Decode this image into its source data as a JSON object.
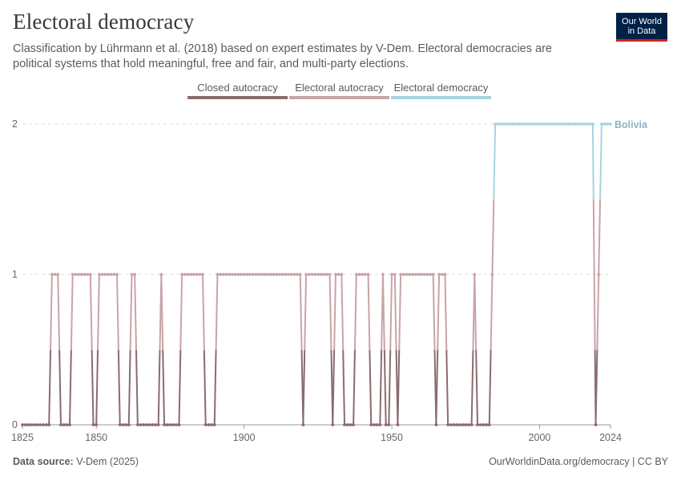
{
  "header": {
    "title": "Electoral democracy",
    "subtitle": "Classification by Lührmann et al. (2018) based on expert estimates by V-Dem. Electoral democracies are political systems that hold meaningful, free and fair, and multi-party elections.",
    "logo_line1": "Our World",
    "logo_line2": "in Data"
  },
  "footer": {
    "source_label": "Data source:",
    "source_value": "V-Dem (2025)",
    "url": "OurWorldinData.org/democracy | CC BY"
  },
  "chart_data": {
    "type": "line",
    "entity": "Bolivia",
    "xlim": [
      1825,
      2024
    ],
    "ylim": [
      0,
      2
    ],
    "x_ticks": [
      1825,
      1850,
      1900,
      1950,
      2000,
      2024
    ],
    "y_ticks": [
      0,
      1,
      2
    ],
    "grid": "horizontal dashed",
    "legend": {
      "position": "top",
      "items": [
        {
          "label": "Closed autocracy",
          "color": "#8a6c6e"
        },
        {
          "label": "Electoral autocracy",
          "color": "#c9a3a7"
        },
        {
          "label": "Electoral democracy",
          "color": "#a6d4dd"
        }
      ]
    },
    "segments": [
      {
        "start": 1825,
        "end": 1834,
        "value": 0
      },
      {
        "start": 1835,
        "end": 1837,
        "value": 1
      },
      {
        "start": 1838,
        "end": 1841,
        "value": 0
      },
      {
        "start": 1842,
        "end": 1848,
        "value": 1
      },
      {
        "start": 1849,
        "end": 1850,
        "value": 0
      },
      {
        "start": 1851,
        "end": 1857,
        "value": 1
      },
      {
        "start": 1858,
        "end": 1861,
        "value": 0
      },
      {
        "start": 1862,
        "end": 1863,
        "value": 1
      },
      {
        "start": 1864,
        "end": 1871,
        "value": 0
      },
      {
        "start": 1872,
        "end": 1872,
        "value": 1
      },
      {
        "start": 1873,
        "end": 1878,
        "value": 0
      },
      {
        "start": 1879,
        "end": 1886,
        "value": 1
      },
      {
        "start": 1887,
        "end": 1890,
        "value": 0
      },
      {
        "start": 1891,
        "end": 1919,
        "value": 1
      },
      {
        "start": 1920,
        "end": 1920,
        "value": 0
      },
      {
        "start": 1921,
        "end": 1929,
        "value": 1
      },
      {
        "start": 1930,
        "end": 1930,
        "value": 0
      },
      {
        "start": 1931,
        "end": 1933,
        "value": 1
      },
      {
        "start": 1934,
        "end": 1937,
        "value": 0
      },
      {
        "start": 1938,
        "end": 1942,
        "value": 1
      },
      {
        "start": 1943,
        "end": 1946,
        "value": 0
      },
      {
        "start": 1947,
        "end": 1947,
        "value": 1
      },
      {
        "start": 1948,
        "end": 1949,
        "value": 0
      },
      {
        "start": 1950,
        "end": 1951,
        "value": 1
      },
      {
        "start": 1952,
        "end": 1952,
        "value": 0
      },
      {
        "start": 1953,
        "end": 1964,
        "value": 1
      },
      {
        "start": 1965,
        "end": 1965,
        "value": 0
      },
      {
        "start": 1966,
        "end": 1968,
        "value": 1
      },
      {
        "start": 1969,
        "end": 1977,
        "value": 0
      },
      {
        "start": 1978,
        "end": 1978,
        "value": 1
      },
      {
        "start": 1979,
        "end": 1983,
        "value": 0
      },
      {
        "start": 1984,
        "end": 1984,
        "value": 1
      },
      {
        "start": 1985,
        "end": 2018,
        "value": 2
      },
      {
        "start": 2019,
        "end": 2019,
        "value": 0
      },
      {
        "start": 2020,
        "end": 2020,
        "value": 1
      },
      {
        "start": 2021,
        "end": 2024,
        "value": 2
      }
    ]
  }
}
